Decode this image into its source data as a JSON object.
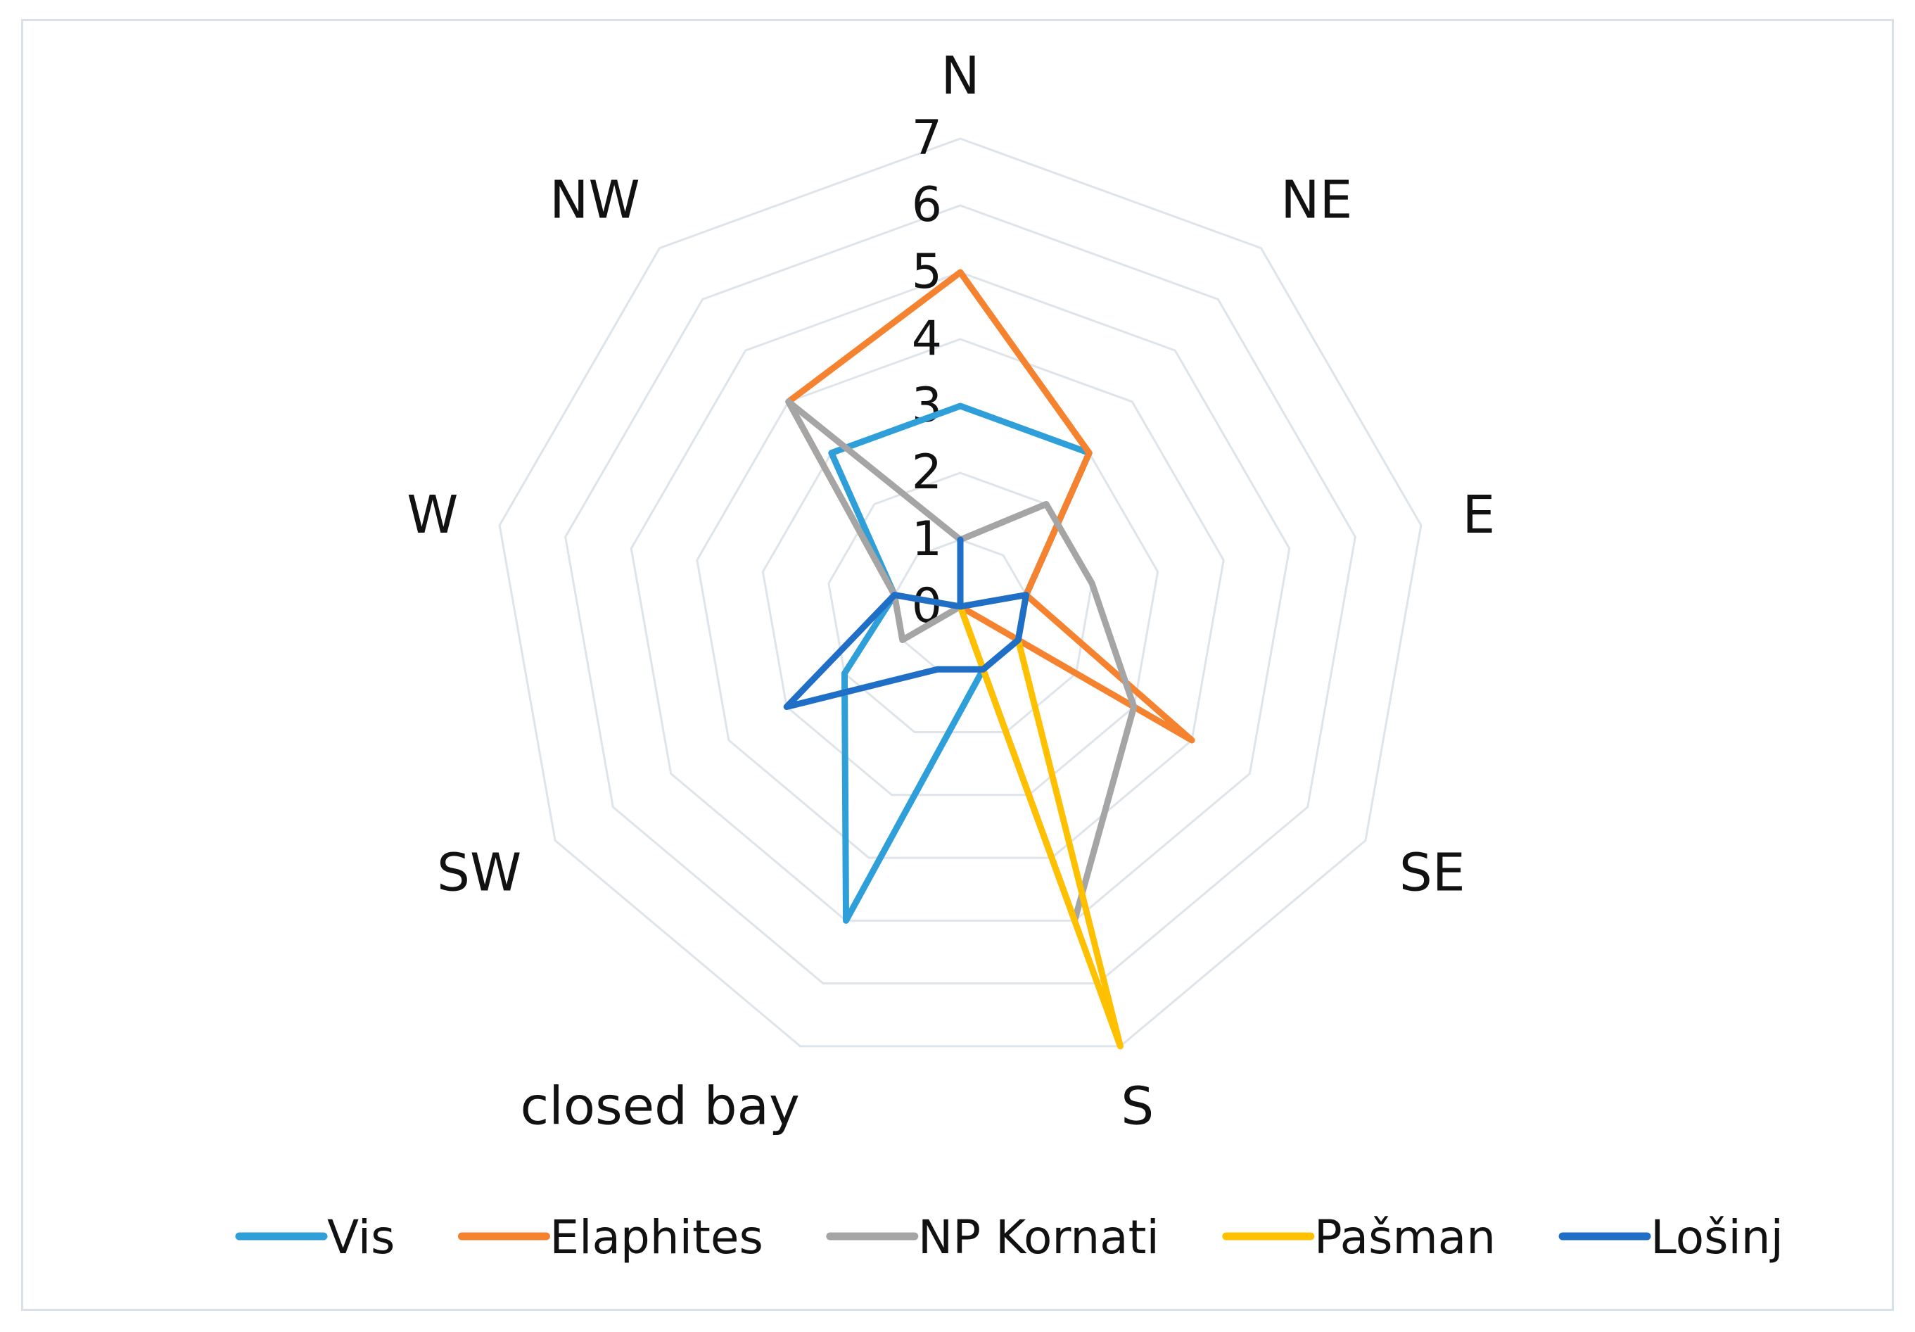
{
  "chart_data": {
    "type": "radar",
    "title": "",
    "categories": [
      "N",
      "NE",
      "E",
      "SE",
      "S",
      "closed bay",
      "SW",
      "W",
      "NW"
    ],
    "radial_ticks": [
      "0",
      "1",
      "2",
      "3",
      "4",
      "5",
      "6",
      "7"
    ],
    "rmax": 7,
    "grid": true,
    "legend_position": "bottom",
    "series": [
      {
        "name": "Vis",
        "color": "#2e9fd8",
        "values": [
          3,
          3,
          1,
          1,
          1,
          5,
          2,
          1,
          3
        ]
      },
      {
        "name": "Elaphites",
        "color": "#f5822f",
        "values": [
          5,
          3,
          1,
          4,
          0,
          0,
          0,
          1,
          4
        ]
      },
      {
        "name": "NP Kornati",
        "color": "#a5a5a5",
        "values": [
          1,
          2,
          2,
          3,
          5,
          0,
          1,
          1,
          4
        ]
      },
      {
        "name": "Pašman",
        "color": "#ffc000",
        "values": [
          0,
          0,
          1,
          1,
          7,
          0,
          0,
          0,
          0
        ]
      },
      {
        "name": "Lošinj",
        "color": "#1f6fc6",
        "values": [
          1,
          0,
          1,
          1,
          1,
          1,
          3,
          1,
          0
        ]
      }
    ]
  }
}
